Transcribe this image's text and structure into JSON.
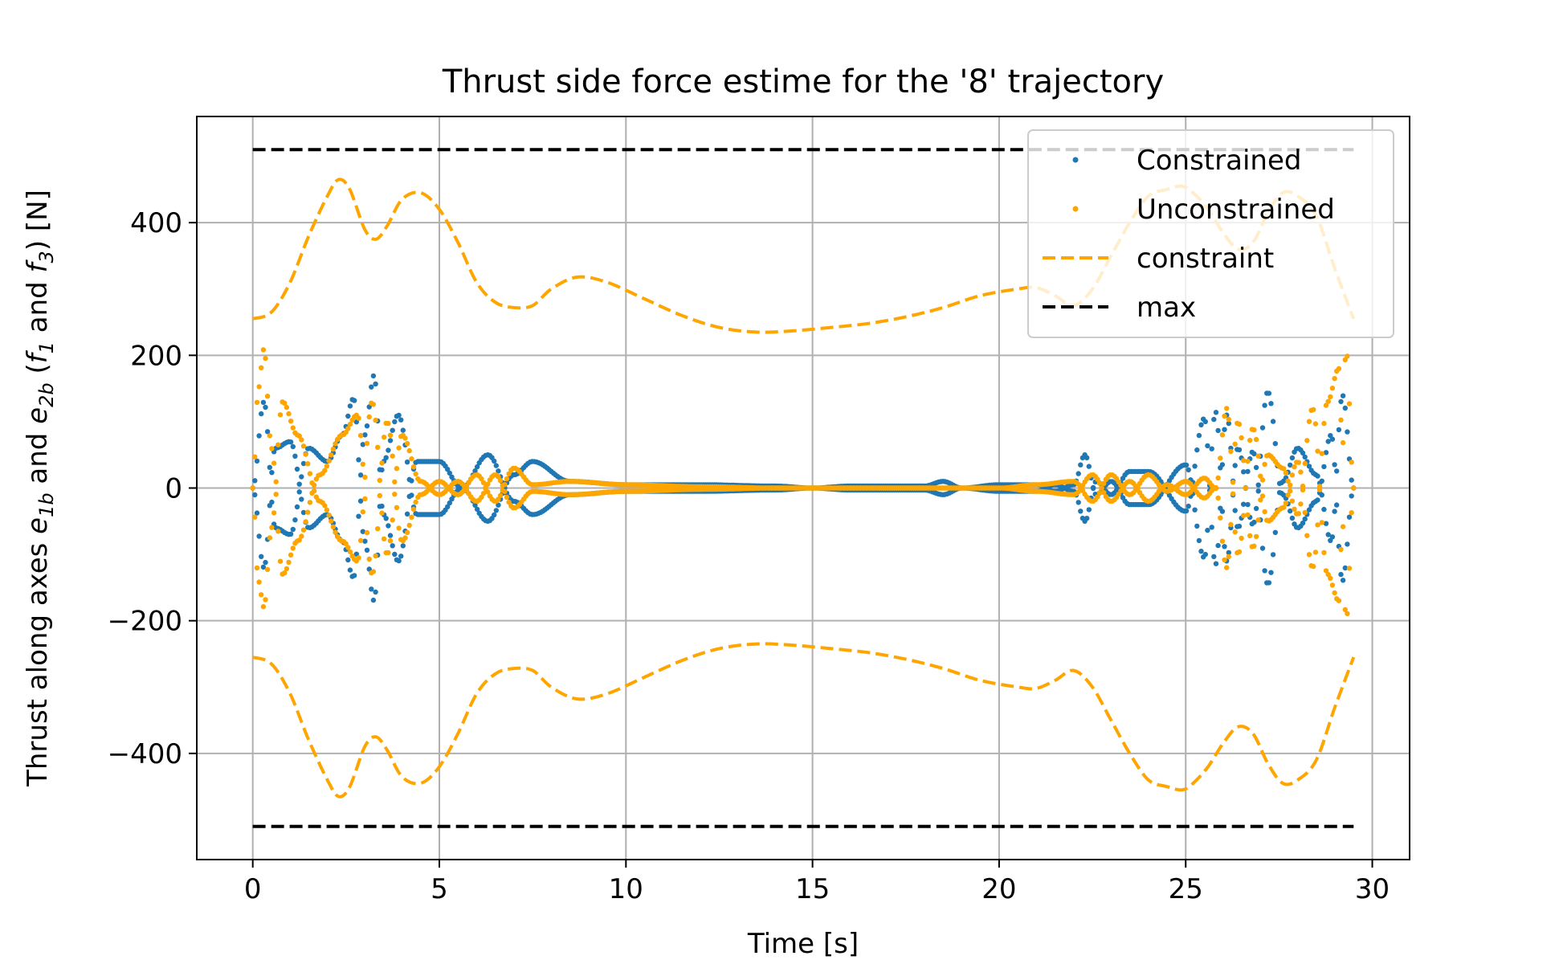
{
  "chart_data": {
    "type": "scatter",
    "title": "Thrust side force estime for the '8' trajectory",
    "xlabel": "Time [s]",
    "ylabel_parts": [
      "Thrust along axes ",
      "e",
      "1b",
      " and ",
      "e",
      "2b",
      " (",
      "f",
      "1",
      " and ",
      "f",
      "3",
      ") [N]"
    ],
    "xlim": [
      -1.5,
      31
    ],
    "ylim": [
      -560,
      560
    ],
    "xticks": [
      0,
      5,
      10,
      15,
      20,
      25,
      30
    ],
    "xtick_labels": [
      "0",
      "5",
      "10",
      "15",
      "20",
      "25",
      "30"
    ],
    "yticks": [
      -400,
      -200,
      0,
      200,
      400
    ],
    "ytick_labels": [
      "−400",
      "−200",
      "0",
      "200",
      "400"
    ],
    "grid": true,
    "legend_position": "top-right",
    "series": [
      {
        "name": "Constrained",
        "style": "dots",
        "color": "#1f77b4",
        "curves": [
          {
            "x": [
              0,
              0.3,
              0.6,
              1.0,
              1.5,
              2.0,
              2.4,
              2.7,
              3.0,
              3.25,
              3.5,
              3.9,
              4.4,
              5.0,
              5.6,
              6.3,
              7.0,
              7.5,
              8.5,
              10,
              12,
              14,
              15,
              16,
              18,
              18.5,
              19,
              20,
              21,
              21.5,
              22,
              22.3,
              22.6,
              23,
              23.5,
              24,
              25,
              25.5,
              25.8,
              26.1,
              26.4,
              26.8,
              27.2,
              27.6,
              28,
              28.5,
              28.9,
              29.2,
              29.5
            ],
            "y": [
              0,
              130,
              -60,
              -70,
              60,
              40,
              80,
              135,
              -80,
              -170,
              40,
              110,
              -40,
              -40,
              0,
              -50,
              20,
              40,
              10,
              5,
              5,
              3,
              0,
              -3,
              -3,
              -10,
              0,
              -5,
              -5,
              5,
              -5,
              -50,
              10,
              -10,
              25,
              25,
              -35,
              105,
              -115,
              110,
              -60,
              55,
              -145,
              10,
              60,
              20,
              -80,
              140,
              0
            ]
          },
          {
            "x": [
              0,
              0.3,
              0.6,
              1.0,
              1.5,
              2.0,
              2.4,
              2.7,
              3.0,
              3.25,
              3.5,
              3.9,
              4.4,
              5.0,
              5.6,
              6.3,
              7.0,
              7.5,
              8.5,
              10,
              12,
              14,
              15,
              16,
              18,
              18.5,
              19,
              20,
              21,
              21.5,
              22,
              22.3,
              22.6,
              23,
              23.5,
              24,
              25,
              25.5,
              25.8,
              26.1,
              26.4,
              26.8,
              27.2,
              27.6,
              28,
              28.5,
              28.9,
              29.2,
              29.5
            ],
            "y": [
              0,
              -120,
              60,
              70,
              -60,
              -40,
              -80,
              -135,
              80,
              170,
              -40,
              -110,
              40,
              40,
              0,
              50,
              -20,
              -40,
              -10,
              -5,
              -5,
              -3,
              0,
              3,
              3,
              10,
              0,
              5,
              5,
              -5,
              5,
              50,
              -10,
              10,
              -25,
              -25,
              35,
              -105,
              115,
              -110,
              60,
              -55,
              145,
              -10,
              -60,
              -20,
              80,
              -140,
              0
            ]
          }
        ]
      },
      {
        "name": "Unconstrained",
        "style": "dots",
        "color": "#ffa500",
        "curves": [
          {
            "x": [
              0,
              0.15,
              0.3,
              0.5,
              0.8,
              1.2,
              1.8,
              2.4,
              2.8,
              3.2,
              3.6,
              4.0,
              4.5,
              5.0,
              5.5,
              6.0,
              6.5,
              7.0,
              7.5,
              8.5,
              10,
              12,
              14,
              15,
              16,
              18,
              20,
              21,
              22,
              22.5,
              23,
              23.5,
              24,
              24.5,
              25,
              25.5,
              25.8,
              26.1,
              26.4,
              26.8,
              27.2,
              27.6,
              28,
              28.4,
              28.8,
              29.1,
              29.3,
              29.5
            ],
            "y": [
              0,
              150,
              210,
              60,
              -130,
              -80,
              20,
              80,
              110,
              -130,
              100,
              -80,
              -10,
              10,
              -10,
              20,
              -20,
              30,
              5,
              10,
              5,
              2,
              0,
              0,
              0,
              0,
              0,
              5,
              10,
              -20,
              20,
              -10,
              20,
              -5,
              10,
              -15,
              0,
              120,
              -100,
              90,
              -50,
              -30,
              40,
              -120,
              130,
              180,
              -200,
              0
            ]
          },
          {
            "x": [
              0,
              0.15,
              0.3,
              0.5,
              0.8,
              1.2,
              1.8,
              2.4,
              2.8,
              3.2,
              3.6,
              4.0,
              4.5,
              5.0,
              5.5,
              6.0,
              6.5,
              7.0,
              7.5,
              8.5,
              10,
              12,
              14,
              15,
              16,
              18,
              20,
              21,
              22,
              22.5,
              23,
              23.5,
              24,
              24.5,
              25,
              25.5,
              25.8,
              26.1,
              26.4,
              26.8,
              27.2,
              27.6,
              28,
              28.4,
              28.8,
              29.1,
              29.3,
              29.5
            ],
            "y": [
              0,
              -140,
              -180,
              -60,
              130,
              80,
              -20,
              -80,
              -110,
              130,
              -100,
              80,
              10,
              -10,
              10,
              -20,
              20,
              -30,
              -5,
              -10,
              -5,
              -2,
              0,
              0,
              0,
              0,
              0,
              -5,
              -10,
              20,
              -20,
              10,
              -20,
              5,
              -10,
              15,
              0,
              -120,
              100,
              -90,
              50,
              30,
              -40,
              120,
              -130,
              -170,
              210,
              0
            ]
          }
        ]
      },
      {
        "name": "constraint",
        "style": "dashed",
        "color": "#ffa500",
        "curves": [
          {
            "x": [
              0,
              0.5,
              1.0,
              1.5,
              2.0,
              2.3,
              2.6,
              3.0,
              3.3,
              3.6,
              4.0,
              4.5,
              5.0,
              5.5,
              6.0,
              6.5,
              7.0,
              7.5,
              8.0,
              8.7,
              9.5,
              10.5,
              11.5,
              12.5,
              13.5,
              14.5,
              15.5,
              16.5,
              17.5,
              18.5,
              19.5,
              20.5,
              21.0,
              21.5,
              22.0,
              22.5,
              23.0,
              23.5,
              24.0,
              24.5,
              24.9,
              25.2,
              25.6,
              26.0,
              26.4,
              26.8,
              27.2,
              27.6,
              28.0,
              28.5,
              29.0,
              29.5
            ],
            "y": [
              255,
              265,
              310,
              380,
              440,
              465,
              450,
              390,
              375,
              395,
              435,
              445,
              420,
              370,
              310,
              280,
              272,
              275,
              300,
              318,
              310,
              285,
              260,
              242,
              235,
              237,
              242,
              248,
              258,
              272,
              290,
              300,
              302,
              290,
              275,
              300,
              350,
              400,
              440,
              450,
              455,
              445,
              420,
              385,
              360,
              370,
              415,
              445,
              440,
              410,
              330,
              255
            ]
          },
          {
            "x": [
              0,
              0.5,
              1.0,
              1.5,
              2.0,
              2.3,
              2.6,
              3.0,
              3.3,
              3.6,
              4.0,
              4.5,
              5.0,
              5.5,
              6.0,
              6.5,
              7.0,
              7.5,
              8.0,
              8.7,
              9.5,
              10.5,
              11.5,
              12.5,
              13.5,
              14.5,
              15.5,
              16.5,
              17.5,
              18.5,
              19.5,
              20.5,
              21.0,
              21.5,
              22.0,
              22.5,
              23.0,
              23.5,
              24.0,
              24.5,
              24.9,
              25.2,
              25.6,
              26.0,
              26.4,
              26.8,
              27.2,
              27.6,
              28.0,
              28.5,
              29.0,
              29.5
            ],
            "y": [
              -255,
              -265,
              -310,
              -380,
              -440,
              -465,
              -450,
              -390,
              -375,
              -395,
              -435,
              -445,
              -420,
              -370,
              -310,
              -280,
              -272,
              -275,
              -300,
              -318,
              -310,
              -285,
              -260,
              -242,
              -235,
              -237,
              -242,
              -248,
              -258,
              -272,
              -290,
              -300,
              -302,
              -290,
              -275,
              -300,
              -350,
              -400,
              -440,
              -450,
              -455,
              -445,
              -420,
              -385,
              -360,
              -370,
              -415,
              -445,
              -440,
              -410,
              -330,
              -255
            ]
          }
        ]
      },
      {
        "name": "max",
        "style": "dashed",
        "color": "#000000",
        "curves": [
          {
            "x": [
              0,
              29.5
            ],
            "y": [
              510,
              510
            ]
          },
          {
            "x": [
              0,
              29.5
            ],
            "y": [
              -510,
              -510
            ]
          }
        ]
      }
    ]
  }
}
